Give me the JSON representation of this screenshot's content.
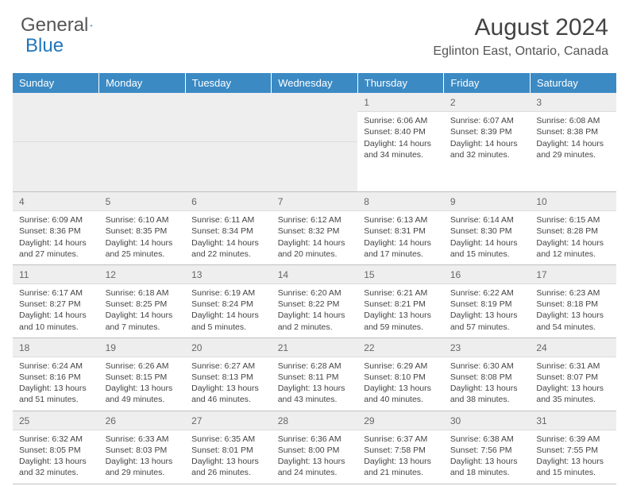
{
  "logo": {
    "word1": "General",
    "word2": "Blue"
  },
  "header": {
    "title": "August 2024",
    "location": "Eglinton East, Ontario, Canada"
  },
  "colors": {
    "header_blue": "#3b8ac4",
    "logo_blue": "#2176bd",
    "daynum_bg": "#eeeeee",
    "border_gray": "#bfbfbf"
  },
  "daynames": [
    "Sunday",
    "Monday",
    "Tuesday",
    "Wednesday",
    "Thursday",
    "Friday",
    "Saturday"
  ],
  "weeks": [
    [
      null,
      null,
      null,
      null,
      {
        "n": "1",
        "sr": "Sunrise: 6:06 AM",
        "ss": "Sunset: 8:40 PM",
        "dl": "Daylight: 14 hours and 34 minutes."
      },
      {
        "n": "2",
        "sr": "Sunrise: 6:07 AM",
        "ss": "Sunset: 8:39 PM",
        "dl": "Daylight: 14 hours and 32 minutes."
      },
      {
        "n": "3",
        "sr": "Sunrise: 6:08 AM",
        "ss": "Sunset: 8:38 PM",
        "dl": "Daylight: 14 hours and 29 minutes."
      }
    ],
    [
      {
        "n": "4",
        "sr": "Sunrise: 6:09 AM",
        "ss": "Sunset: 8:36 PM",
        "dl": "Daylight: 14 hours and 27 minutes."
      },
      {
        "n": "5",
        "sr": "Sunrise: 6:10 AM",
        "ss": "Sunset: 8:35 PM",
        "dl": "Daylight: 14 hours and 25 minutes."
      },
      {
        "n": "6",
        "sr": "Sunrise: 6:11 AM",
        "ss": "Sunset: 8:34 PM",
        "dl": "Daylight: 14 hours and 22 minutes."
      },
      {
        "n": "7",
        "sr": "Sunrise: 6:12 AM",
        "ss": "Sunset: 8:32 PM",
        "dl": "Daylight: 14 hours and 20 minutes."
      },
      {
        "n": "8",
        "sr": "Sunrise: 6:13 AM",
        "ss": "Sunset: 8:31 PM",
        "dl": "Daylight: 14 hours and 17 minutes."
      },
      {
        "n": "9",
        "sr": "Sunrise: 6:14 AM",
        "ss": "Sunset: 8:30 PM",
        "dl": "Daylight: 14 hours and 15 minutes."
      },
      {
        "n": "10",
        "sr": "Sunrise: 6:15 AM",
        "ss": "Sunset: 8:28 PM",
        "dl": "Daylight: 14 hours and 12 minutes."
      }
    ],
    [
      {
        "n": "11",
        "sr": "Sunrise: 6:17 AM",
        "ss": "Sunset: 8:27 PM",
        "dl": "Daylight: 14 hours and 10 minutes."
      },
      {
        "n": "12",
        "sr": "Sunrise: 6:18 AM",
        "ss": "Sunset: 8:25 PM",
        "dl": "Daylight: 14 hours and 7 minutes."
      },
      {
        "n": "13",
        "sr": "Sunrise: 6:19 AM",
        "ss": "Sunset: 8:24 PM",
        "dl": "Daylight: 14 hours and 5 minutes."
      },
      {
        "n": "14",
        "sr": "Sunrise: 6:20 AM",
        "ss": "Sunset: 8:22 PM",
        "dl": "Daylight: 14 hours and 2 minutes."
      },
      {
        "n": "15",
        "sr": "Sunrise: 6:21 AM",
        "ss": "Sunset: 8:21 PM",
        "dl": "Daylight: 13 hours and 59 minutes."
      },
      {
        "n": "16",
        "sr": "Sunrise: 6:22 AM",
        "ss": "Sunset: 8:19 PM",
        "dl": "Daylight: 13 hours and 57 minutes."
      },
      {
        "n": "17",
        "sr": "Sunrise: 6:23 AM",
        "ss": "Sunset: 8:18 PM",
        "dl": "Daylight: 13 hours and 54 minutes."
      }
    ],
    [
      {
        "n": "18",
        "sr": "Sunrise: 6:24 AM",
        "ss": "Sunset: 8:16 PM",
        "dl": "Daylight: 13 hours and 51 minutes."
      },
      {
        "n": "19",
        "sr": "Sunrise: 6:26 AM",
        "ss": "Sunset: 8:15 PM",
        "dl": "Daylight: 13 hours and 49 minutes."
      },
      {
        "n": "20",
        "sr": "Sunrise: 6:27 AM",
        "ss": "Sunset: 8:13 PM",
        "dl": "Daylight: 13 hours and 46 minutes."
      },
      {
        "n": "21",
        "sr": "Sunrise: 6:28 AM",
        "ss": "Sunset: 8:11 PM",
        "dl": "Daylight: 13 hours and 43 minutes."
      },
      {
        "n": "22",
        "sr": "Sunrise: 6:29 AM",
        "ss": "Sunset: 8:10 PM",
        "dl": "Daylight: 13 hours and 40 minutes."
      },
      {
        "n": "23",
        "sr": "Sunrise: 6:30 AM",
        "ss": "Sunset: 8:08 PM",
        "dl": "Daylight: 13 hours and 38 minutes."
      },
      {
        "n": "24",
        "sr": "Sunrise: 6:31 AM",
        "ss": "Sunset: 8:07 PM",
        "dl": "Daylight: 13 hours and 35 minutes."
      }
    ],
    [
      {
        "n": "25",
        "sr": "Sunrise: 6:32 AM",
        "ss": "Sunset: 8:05 PM",
        "dl": "Daylight: 13 hours and 32 minutes."
      },
      {
        "n": "26",
        "sr": "Sunrise: 6:33 AM",
        "ss": "Sunset: 8:03 PM",
        "dl": "Daylight: 13 hours and 29 minutes."
      },
      {
        "n": "27",
        "sr": "Sunrise: 6:35 AM",
        "ss": "Sunset: 8:01 PM",
        "dl": "Daylight: 13 hours and 26 minutes."
      },
      {
        "n": "28",
        "sr": "Sunrise: 6:36 AM",
        "ss": "Sunset: 8:00 PM",
        "dl": "Daylight: 13 hours and 24 minutes."
      },
      {
        "n": "29",
        "sr": "Sunrise: 6:37 AM",
        "ss": "Sunset: 7:58 PM",
        "dl": "Daylight: 13 hours and 21 minutes."
      },
      {
        "n": "30",
        "sr": "Sunrise: 6:38 AM",
        "ss": "Sunset: 7:56 PM",
        "dl": "Daylight: 13 hours and 18 minutes."
      },
      {
        "n": "31",
        "sr": "Sunrise: 6:39 AM",
        "ss": "Sunset: 7:55 PM",
        "dl": "Daylight: 13 hours and 15 minutes."
      }
    ]
  ]
}
